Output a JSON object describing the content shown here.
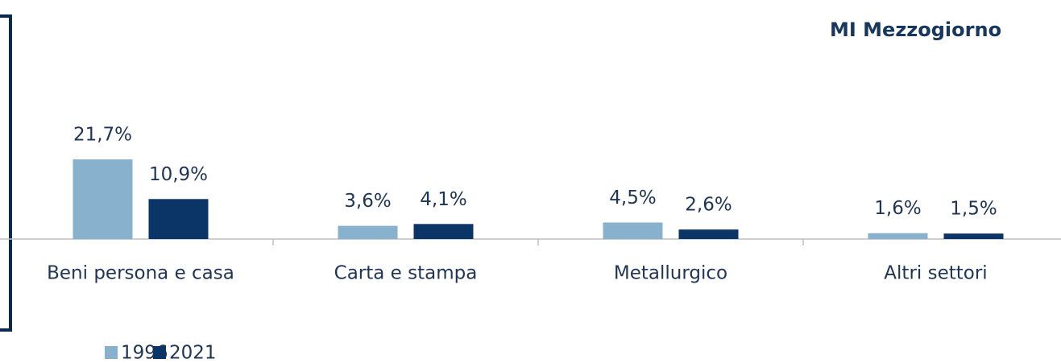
{
  "chart_data": {
    "type": "bar",
    "title": "MI Mezzogiorno",
    "categories": [
      "Beni persona e casa",
      "Carta e stampa",
      "Metallurgico",
      "Altri settori"
    ],
    "series": [
      {
        "name": "1996",
        "color": "#87b1cd",
        "values": [
          21.7,
          3.6,
          4.5,
          1.6
        ],
        "value_labels": [
          "21,7%",
          "3,6%",
          "4,5%",
          "1,6%"
        ]
      },
      {
        "name": "2021",
        "color": "#0b3566",
        "values": [
          10.9,
          4.1,
          2.6,
          1.5
        ],
        "value_labels": [
          "10,9%",
          "4,1%",
          "2,6%",
          "1,5%"
        ]
      }
    ],
    "legend": "bottom-left"
  }
}
